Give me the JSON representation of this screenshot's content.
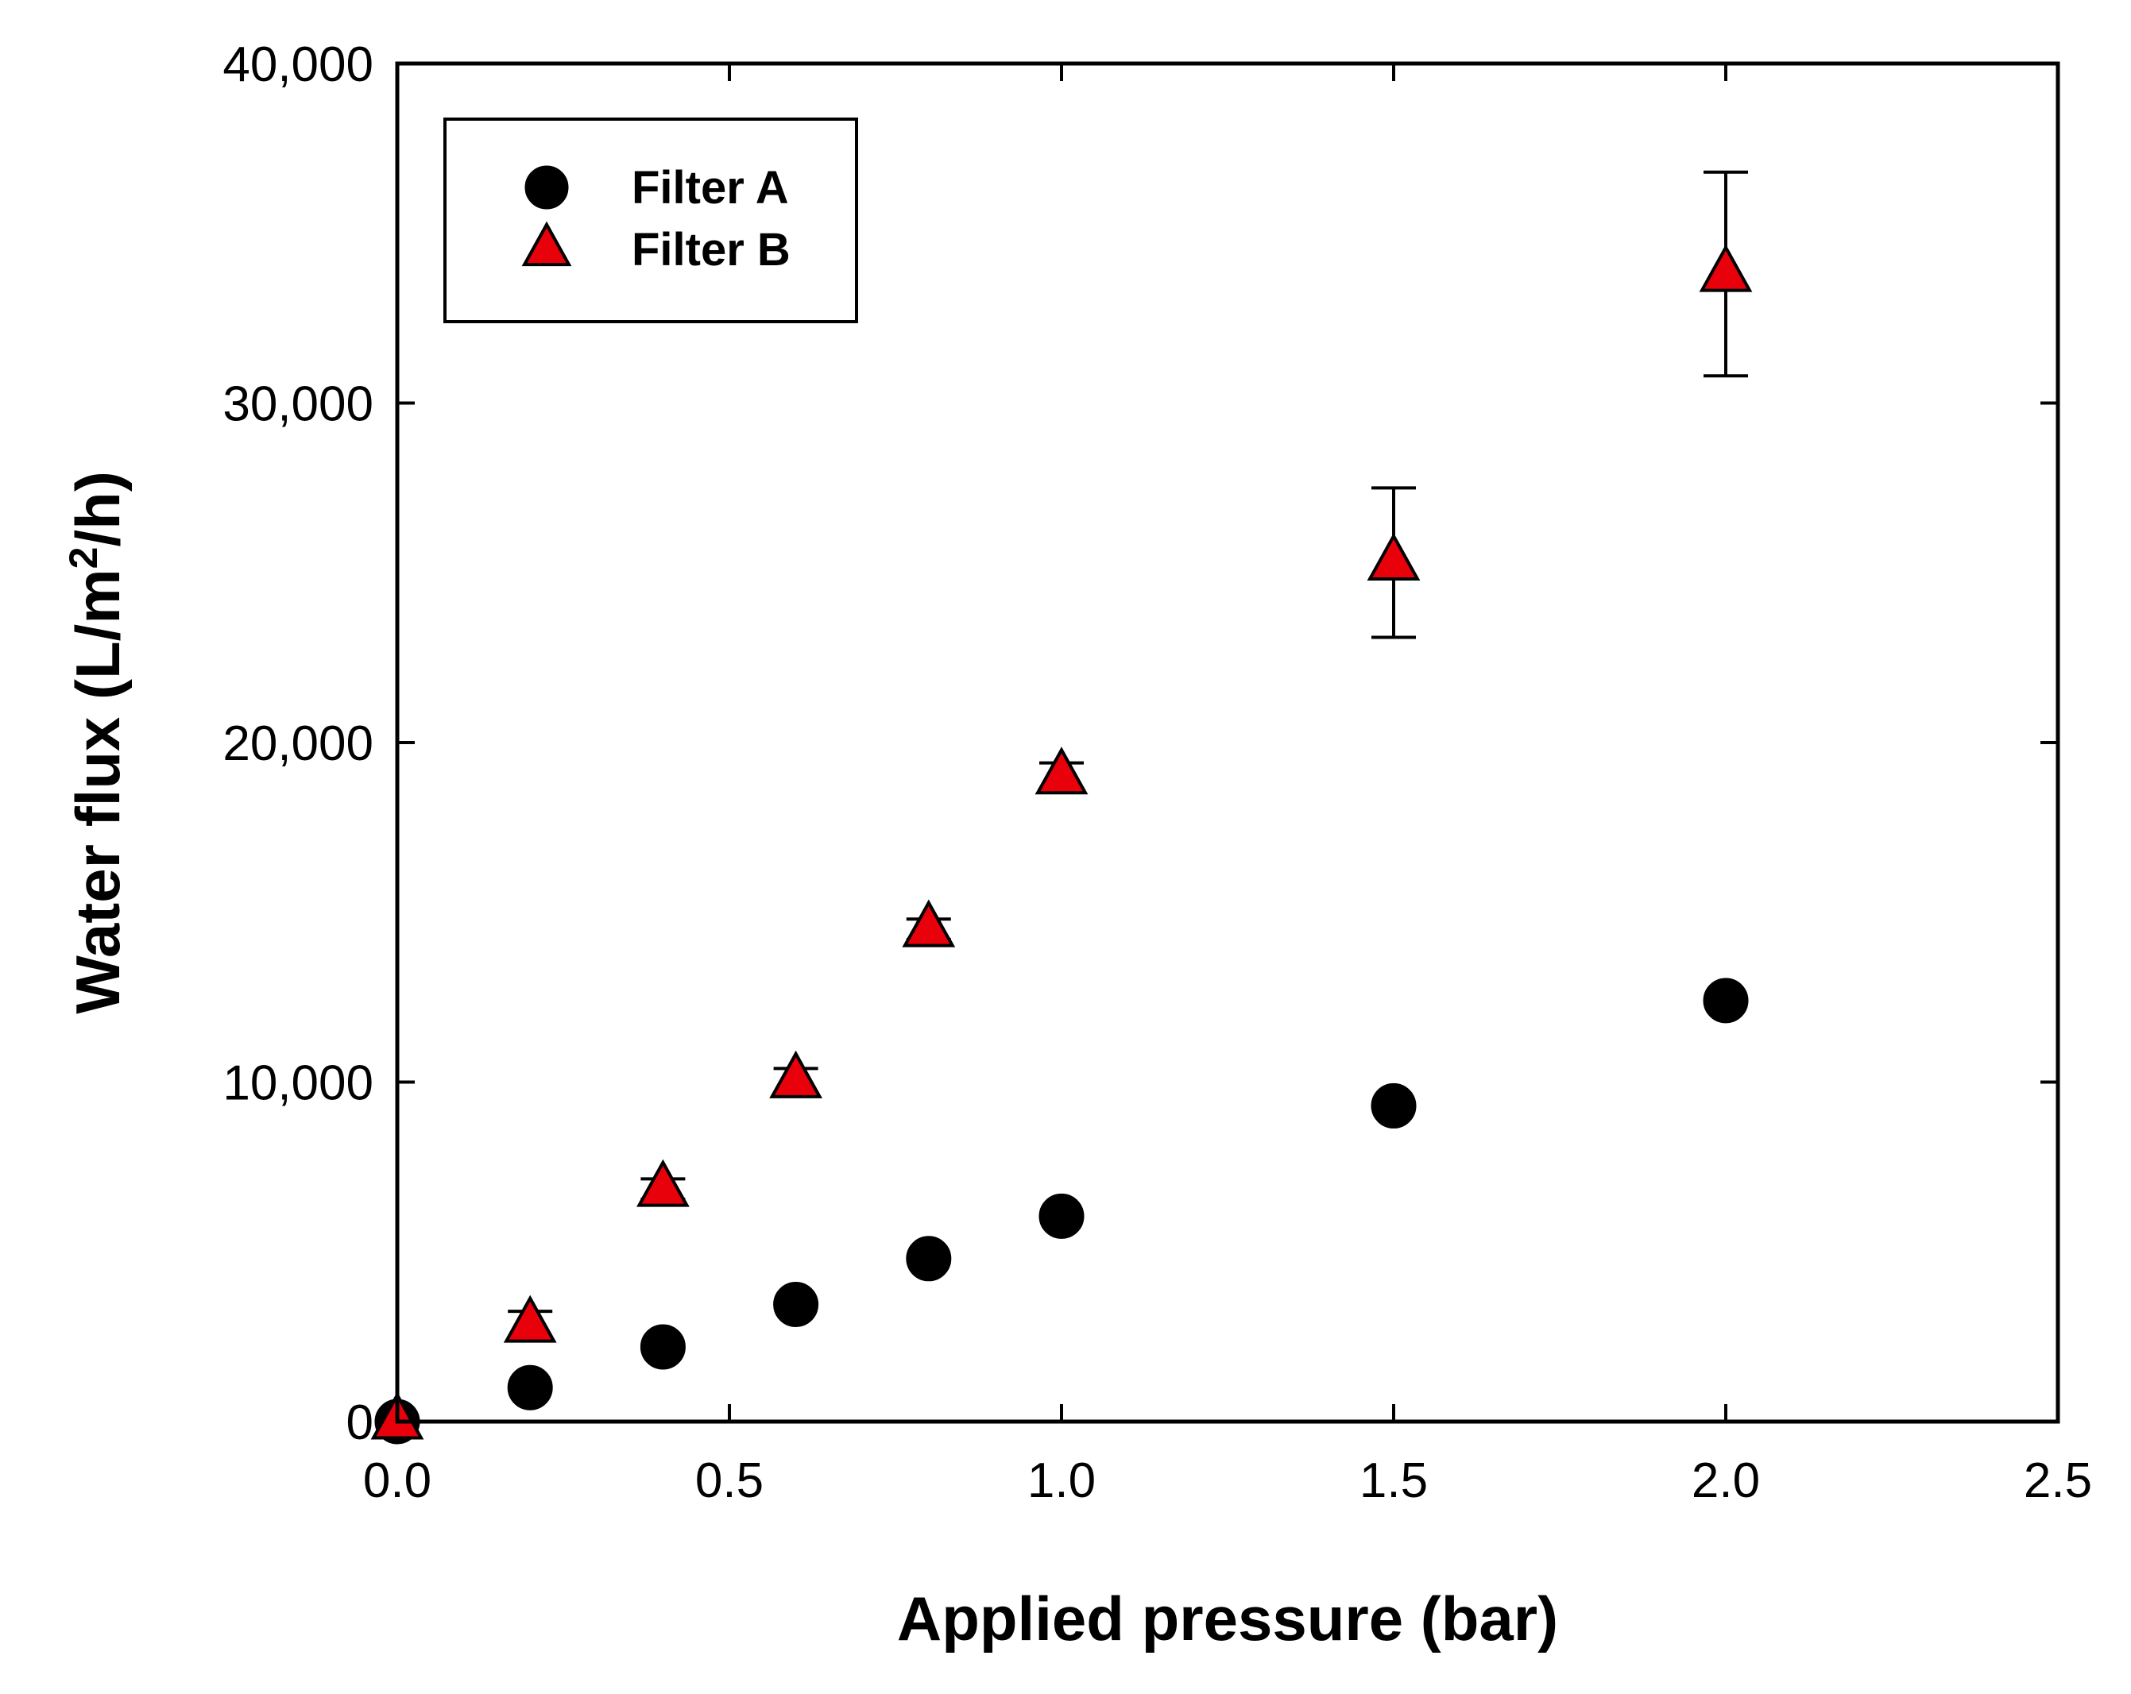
{
  "chart_data": {
    "type": "scatter",
    "title": "",
    "xlabel": "Applied pressure (bar)",
    "ylabel_parts": {
      "pre": "Water flux (L/m",
      "sup": "2",
      "post": "/h)"
    },
    "xlim": [
      0,
      2.5
    ],
    "ylim": [
      0,
      40000
    ],
    "xticks": [
      0.0,
      0.5,
      1.0,
      1.5,
      2.0,
      2.5
    ],
    "xtick_labels": [
      "0.0",
      "0.5",
      "1.0",
      "1.5",
      "2.0",
      "2.5"
    ],
    "yticks": [
      0,
      10000,
      20000,
      30000,
      40000
    ],
    "ytick_labels": [
      "0",
      "10,000",
      "20,000",
      "30,000",
      "40,000"
    ],
    "legend_position": "top-left",
    "series": [
      {
        "name": "Filter A",
        "marker": "circle",
        "color": "#000000",
        "x": [
          0,
          0.2,
          0.4,
          0.6,
          0.8,
          1.0,
          1.5,
          2.0
        ],
        "y": [
          0,
          1000,
          2200,
          3450,
          4800,
          6050,
          9300,
          12400
        ],
        "err": [
          0,
          0,
          0,
          0,
          0,
          0,
          0,
          0
        ]
      },
      {
        "name": "Filter B",
        "marker": "triangle",
        "color": "#e8000b",
        "x": [
          0,
          0.2,
          0.4,
          0.6,
          0.8,
          1.0,
          1.5,
          2.0
        ],
        "y": [
          0,
          2850,
          6850,
          10050,
          14500,
          19000,
          25300,
          33800
        ],
        "err": [
          0,
          400,
          300,
          350,
          300,
          400,
          2200,
          3000
        ]
      }
    ]
  }
}
